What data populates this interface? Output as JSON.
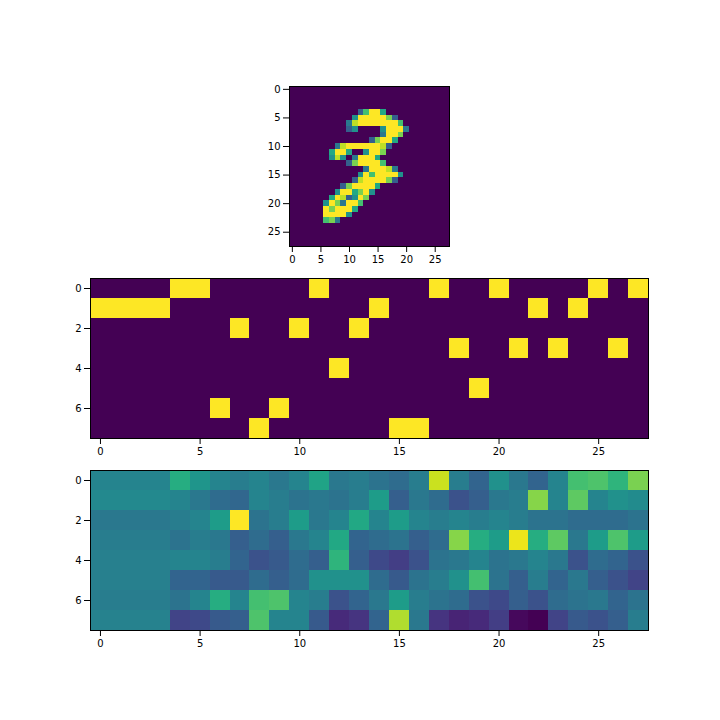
{
  "chart_data": [
    {
      "type": "heatmap",
      "color": "viridis",
      "color_range": [
        0,
        1
      ],
      "xlim": [
        -0.5,
        27.5
      ],
      "ylim": [
        27.5,
        -0.5
      ],
      "xticks": [
        0,
        5,
        10,
        15,
        20,
        25
      ],
      "yticks": [
        0,
        5,
        10,
        15,
        20,
        25
      ],
      "cells": [
        [
          0,
          0,
          0,
          0,
          0,
          0,
          0,
          0,
          0,
          0,
          0,
          0,
          0,
          0,
          0,
          0,
          0,
          0,
          0,
          0,
          0,
          0,
          0,
          0,
          0,
          0,
          0,
          0
        ],
        [
          0,
          0,
          0,
          0,
          0,
          0,
          0,
          0,
          0,
          0,
          0,
          0,
          0,
          0,
          0,
          0,
          0,
          0,
          0,
          0,
          0,
          0,
          0,
          0,
          0,
          0,
          0,
          0
        ],
        [
          0,
          0,
          0,
          0,
          0,
          0,
          0,
          0,
          0,
          0,
          0,
          0,
          0,
          0,
          0,
          0,
          0,
          0,
          0,
          0,
          0,
          0,
          0,
          0,
          0,
          0,
          0,
          0
        ],
        [
          0,
          0,
          0,
          0,
          0,
          0,
          0,
          0,
          0,
          0,
          0,
          0,
          0,
          0,
          0,
          0,
          0,
          0,
          0,
          0,
          0,
          0,
          0,
          0,
          0,
          0,
          0,
          0
        ],
        [
          0,
          0,
          0,
          0,
          0,
          0,
          0,
          0,
          0,
          0,
          0,
          0,
          0.3,
          0.7,
          1,
          1,
          0.6,
          0,
          0,
          0,
          0,
          0,
          0,
          0,
          0,
          0,
          0,
          0
        ],
        [
          0,
          0,
          0,
          0,
          0,
          0,
          0,
          0,
          0,
          0,
          0,
          0.5,
          1,
          1,
          1,
          1,
          1,
          0.8,
          0.3,
          0,
          0,
          0,
          0,
          0,
          0,
          0,
          0,
          0
        ],
        [
          0,
          0,
          0,
          0,
          0,
          0,
          0,
          0,
          0,
          0,
          0.4,
          0.9,
          1,
          1,
          1,
          1,
          1,
          1,
          1,
          0.7,
          0,
          0,
          0,
          0,
          0,
          0,
          0,
          0
        ],
        [
          0,
          0,
          0,
          0,
          0,
          0,
          0,
          0,
          0,
          0,
          0.3,
          0.5,
          0,
          0,
          0,
          0,
          0.5,
          1,
          1,
          1,
          0.4,
          0,
          0,
          0,
          0,
          0,
          0,
          0
        ],
        [
          0,
          0,
          0,
          0,
          0,
          0,
          0,
          0,
          0,
          0,
          0,
          0,
          0,
          0,
          0,
          0,
          0.4,
          1,
          1,
          0.8,
          0,
          0,
          0,
          0,
          0,
          0,
          0,
          0
        ],
        [
          0,
          0,
          0,
          0,
          0,
          0,
          0,
          0,
          0,
          0,
          0,
          0,
          0,
          0,
          0.3,
          0.8,
          1,
          1,
          0.6,
          0,
          0,
          0,
          0,
          0,
          0,
          0,
          0,
          0
        ],
        [
          0,
          0,
          0,
          0,
          0,
          0,
          0,
          0,
          0.4,
          0.9,
          1,
          1,
          1,
          1,
          1,
          1,
          0.9,
          0.3,
          0,
          0,
          0,
          0,
          0,
          0,
          0,
          0,
          0,
          0
        ],
        [
          0,
          0,
          0,
          0,
          0,
          0,
          0,
          0.6,
          1,
          1,
          0.6,
          0,
          0,
          0.5,
          1,
          1,
          0.8,
          0,
          0,
          0,
          0,
          0,
          0,
          0,
          0,
          0,
          0,
          0
        ],
        [
          0,
          0,
          0,
          0,
          0,
          0,
          0,
          0.5,
          0.9,
          0.5,
          0,
          0.4,
          1,
          1,
          1,
          0.6,
          0,
          0,
          0,
          0,
          0,
          0,
          0,
          0,
          0,
          0,
          0,
          0
        ],
        [
          0,
          0,
          0,
          0,
          0,
          0,
          0,
          0,
          0,
          0,
          0.3,
          0.8,
          1,
          1,
          1,
          1,
          0.7,
          0,
          0,
          0,
          0,
          0,
          0,
          0,
          0,
          0,
          0,
          0
        ],
        [
          0,
          0,
          0,
          0,
          0,
          0,
          0,
          0,
          0,
          0,
          0,
          0,
          0,
          0.4,
          1,
          1,
          1,
          0.9,
          0.4,
          0,
          0,
          0,
          0,
          0,
          0,
          0,
          0,
          0
        ],
        [
          0,
          0,
          0,
          0,
          0,
          0,
          0,
          0,
          0,
          0,
          0,
          0,
          0.5,
          1,
          0.7,
          1,
          1,
          1,
          1,
          0.5,
          0,
          0,
          0,
          0,
          0,
          0,
          0,
          0
        ],
        [
          0,
          0,
          0,
          0,
          0,
          0,
          0,
          0,
          0,
          0,
          0,
          0.3,
          0.9,
          1,
          1,
          1,
          1,
          0.8,
          0.3,
          0,
          0,
          0,
          0,
          0,
          0,
          0,
          0,
          0
        ],
        [
          0,
          0,
          0,
          0,
          0,
          0,
          0,
          0,
          0,
          0.3,
          0.8,
          1,
          1,
          1,
          1,
          0.6,
          0,
          0,
          0,
          0,
          0,
          0,
          0,
          0,
          0,
          0,
          0,
          0
        ],
        [
          0,
          0,
          0,
          0,
          0,
          0,
          0,
          0,
          0.5,
          1,
          1,
          0.6,
          0.8,
          1,
          0.5,
          0,
          0,
          0,
          0,
          0,
          0,
          0,
          0,
          0,
          0,
          0,
          0,
          0
        ],
        [
          0,
          0,
          0,
          0,
          0,
          0,
          0,
          0.6,
          1,
          0.9,
          0.3,
          0.5,
          1,
          0.8,
          0,
          0,
          0,
          0,
          0,
          0,
          0,
          0,
          0,
          0,
          0,
          0,
          0,
          0
        ],
        [
          0,
          0,
          0,
          0,
          0,
          0,
          0.5,
          1,
          0.8,
          0.4,
          1,
          1,
          0.7,
          0,
          0,
          0,
          0,
          0,
          0,
          0,
          0,
          0,
          0,
          0,
          0,
          0,
          0,
          0
        ],
        [
          0,
          0,
          0,
          0,
          0,
          0,
          1,
          0.8,
          1,
          1,
          1,
          0.6,
          0,
          0,
          0,
          0,
          0,
          0,
          0,
          0,
          0,
          0,
          0,
          0,
          0,
          0,
          0,
          0
        ],
        [
          0,
          0,
          0,
          0,
          0,
          0,
          1,
          1,
          1,
          1,
          0.5,
          0,
          0,
          0,
          0,
          0,
          0,
          0,
          0,
          0,
          0,
          0,
          0,
          0,
          0,
          0,
          0,
          0
        ],
        [
          0,
          0,
          0,
          0,
          0,
          0,
          0.7,
          0.8,
          0.4,
          0,
          0,
          0,
          0,
          0,
          0,
          0,
          0,
          0,
          0,
          0,
          0,
          0,
          0,
          0,
          0,
          0,
          0,
          0
        ],
        [
          0,
          0,
          0,
          0,
          0,
          0,
          0,
          0,
          0,
          0,
          0,
          0,
          0,
          0,
          0,
          0,
          0,
          0,
          0,
          0,
          0,
          0,
          0,
          0,
          0,
          0,
          0,
          0
        ],
        [
          0,
          0,
          0,
          0,
          0,
          0,
          0,
          0,
          0,
          0,
          0,
          0,
          0,
          0,
          0,
          0,
          0,
          0,
          0,
          0,
          0,
          0,
          0,
          0,
          0,
          0,
          0,
          0
        ],
        [
          0,
          0,
          0,
          0,
          0,
          0,
          0,
          0,
          0,
          0,
          0,
          0,
          0,
          0,
          0,
          0,
          0,
          0,
          0,
          0,
          0,
          0,
          0,
          0,
          0,
          0,
          0,
          0
        ],
        [
          0,
          0,
          0,
          0,
          0,
          0,
          0,
          0,
          0,
          0,
          0,
          0,
          0,
          0,
          0,
          0,
          0,
          0,
          0,
          0,
          0,
          0,
          0,
          0,
          0,
          0,
          0,
          0
        ]
      ]
    },
    {
      "type": "heatmap",
      "color": "viridis",
      "color_range": [
        0,
        1
      ],
      "xlim": [
        -0.5,
        27.5
      ],
      "ylim": [
        7.5,
        -0.5
      ],
      "xticks": [
        0,
        5,
        10,
        15,
        20,
        25
      ],
      "yticks": [
        0,
        2,
        4,
        6
      ],
      "cells": [
        [
          0,
          0,
          0,
          0,
          1,
          1,
          0,
          0,
          0,
          0,
          0,
          1,
          0,
          0,
          0,
          0,
          0,
          1,
          0,
          0,
          1,
          0,
          0,
          0,
          0,
          1,
          0,
          1
        ],
        [
          1,
          1,
          1,
          1,
          0,
          0,
          0,
          0,
          0,
          0,
          0,
          0,
          0,
          0,
          1,
          0,
          0,
          0,
          0,
          0,
          0,
          0,
          1,
          0,
          1,
          0,
          0,
          0
        ],
        [
          0,
          0,
          0,
          0,
          0,
          0,
          0,
          1,
          0,
          0,
          1,
          0,
          0,
          1,
          0,
          0,
          0,
          0,
          0,
          0,
          0,
          0,
          0,
          0,
          0,
          0,
          0,
          0
        ],
        [
          0,
          0,
          0,
          0,
          0,
          0,
          0,
          0,
          0,
          0,
          0,
          0,
          0,
          0,
          0,
          0,
          0,
          0,
          1,
          0,
          0,
          1,
          0,
          1,
          0,
          0,
          1,
          0
        ],
        [
          0,
          0,
          0,
          0,
          0,
          0,
          0,
          0,
          0,
          0,
          0,
          0,
          1,
          0,
          0,
          0,
          0,
          0,
          0,
          0,
          0,
          0,
          0,
          0,
          0,
          0,
          0,
          0
        ],
        [
          0,
          0,
          0,
          0,
          0,
          0,
          0,
          0,
          0,
          0,
          0,
          0,
          0,
          0,
          0,
          0,
          0,
          0,
          0,
          1,
          0,
          0,
          0,
          0,
          0,
          0,
          0,
          0
        ],
        [
          0,
          0,
          0,
          0,
          0,
          0,
          1,
          0,
          0,
          1,
          0,
          0,
          0,
          0,
          0,
          0,
          0,
          0,
          0,
          0,
          0,
          0,
          0,
          0,
          0,
          0,
          0,
          0
        ],
        [
          0,
          0,
          0,
          0,
          0,
          0,
          0,
          0,
          1,
          0,
          0,
          0,
          0,
          0,
          0,
          1,
          1,
          0,
          0,
          0,
          0,
          0,
          0,
          0,
          0,
          0,
          0,
          0
        ]
      ]
    },
    {
      "type": "heatmap",
      "color": "viridis",
      "color_range": [
        0,
        1
      ],
      "xlim": [
        -0.5,
        27.5
      ],
      "ylim": [
        7.5,
        -0.5
      ],
      "xticks": [
        0,
        5,
        10,
        15,
        20,
        25
      ],
      "yticks": [
        0,
        2,
        4,
        6
      ],
      "cells": [
        [
          0.45,
          0.45,
          0.45,
          0.45,
          0.62,
          0.52,
          0.45,
          0.42,
          0.45,
          0.4,
          0.45,
          0.58,
          0.4,
          0.42,
          0.38,
          0.35,
          0.42,
          0.92,
          0.42,
          0.32,
          0.5,
          0.4,
          0.32,
          0.45,
          0.7,
          0.72,
          0.65,
          0.8
        ],
        [
          0.47,
          0.47,
          0.47,
          0.47,
          0.45,
          0.4,
          0.35,
          0.33,
          0.45,
          0.42,
          0.38,
          0.4,
          0.38,
          0.42,
          0.55,
          0.3,
          0.4,
          0.35,
          0.25,
          0.3,
          0.4,
          0.42,
          0.82,
          0.45,
          0.75,
          0.45,
          0.5,
          0.48
        ],
        [
          0.4,
          0.4,
          0.4,
          0.4,
          0.42,
          0.45,
          0.55,
          1.0,
          0.38,
          0.42,
          0.55,
          0.4,
          0.45,
          0.6,
          0.45,
          0.55,
          0.45,
          0.42,
          0.45,
          0.42,
          0.45,
          0.42,
          0.38,
          0.38,
          0.35,
          0.35,
          0.35,
          0.38
        ],
        [
          0.42,
          0.42,
          0.42,
          0.42,
          0.38,
          0.42,
          0.4,
          0.3,
          0.35,
          0.3,
          0.4,
          0.45,
          0.6,
          0.32,
          0.35,
          0.38,
          0.3,
          0.35,
          0.82,
          0.62,
          0.55,
          0.97,
          0.62,
          0.75,
          0.4,
          0.55,
          0.72,
          0.55
        ],
        [
          0.43,
          0.43,
          0.43,
          0.43,
          0.45,
          0.45,
          0.42,
          0.32,
          0.25,
          0.28,
          0.35,
          0.3,
          0.65,
          0.3,
          0.22,
          0.18,
          0.25,
          0.38,
          0.4,
          0.45,
          0.38,
          0.4,
          0.45,
          0.4,
          0.25,
          0.35,
          0.32,
          0.25
        ],
        [
          0.43,
          0.43,
          0.43,
          0.43,
          0.32,
          0.32,
          0.28,
          0.28,
          0.35,
          0.3,
          0.35,
          0.5,
          0.5,
          0.5,
          0.35,
          0.28,
          0.38,
          0.42,
          0.5,
          0.7,
          0.38,
          0.3,
          0.42,
          0.32,
          0.4,
          0.3,
          0.25,
          0.2
        ],
        [
          0.42,
          0.42,
          0.42,
          0.42,
          0.38,
          0.45,
          0.62,
          0.45,
          0.7,
          0.72,
          0.45,
          0.42,
          0.25,
          0.32,
          0.4,
          0.55,
          0.42,
          0.38,
          0.35,
          0.25,
          0.22,
          0.3,
          0.25,
          0.35,
          0.38,
          0.4,
          0.32,
          0.38
        ],
        [
          0.44,
          0.44,
          0.44,
          0.44,
          0.2,
          0.22,
          0.28,
          0.3,
          0.72,
          0.45,
          0.45,
          0.28,
          0.12,
          0.15,
          0.32,
          0.88,
          0.4,
          0.15,
          0.1,
          0.12,
          0.18,
          0.02,
          0.0,
          0.2,
          0.28,
          0.25,
          0.3,
          0.42
        ]
      ]
    }
  ]
}
